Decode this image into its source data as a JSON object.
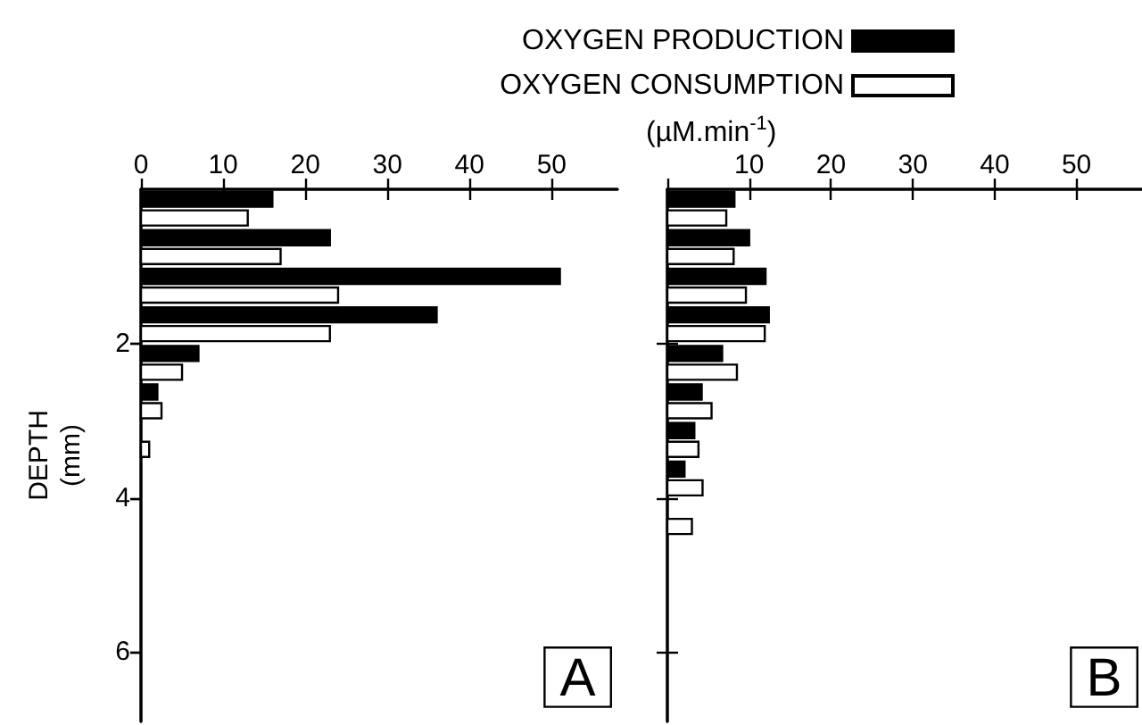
{
  "chart_data": [
    {
      "type": "bar",
      "orientation": "horizontal",
      "ylabel": "DEPTH\n(mm)",
      "legend": "top",
      "legend_title": "(µM.min$^{-1}$)",
      "annotations": [
        "A"
      ],
      "x": [
        0.25,
        0.75,
        1.25,
        1.75,
        2.25,
        2.75,
        3.25
      ],
      "series": [
        {
          "name": "OXYGEN PRODUCTION",
          "color": "#000000",
          "values": [
            16,
            23,
            51,
            36,
            7,
            2,
            null
          ]
        },
        {
          "name": "OXYGEN CONSUMPTION",
          "color": "#ffffff",
          "values": [
            13,
            17,
            24,
            23,
            5,
            2.5,
            1
          ]
        }
      ],
      "xlim": [
        0,
        58
      ],
      "xticks": [
        0,
        10,
        20,
        30,
        40,
        50
      ],
      "ylim": [
        6.9,
        0
      ],
      "yticks": [
        2,
        4,
        6
      ]
    },
    {
      "type": "bar",
      "orientation": "horizontal",
      "annotations": [
        "B"
      ],
      "tick_labels": "x",
      "x": [
        0.25,
        0.75,
        1.25,
        1.75,
        2.25,
        2.75,
        3.25,
        3.75,
        4.25
      ],
      "series": [
        {
          "color": "#000000",
          "values": [
            8.2,
            10,
            12,
            12.4,
            6.7,
            4.2,
            3.3,
            2.1,
            null
          ]
        },
        {
          "color": "#ffffff",
          "values": [
            7.2,
            8.1,
            9.6,
            11.9,
            8.5,
            5.4,
            3.8,
            4.3,
            3
          ]
        }
      ],
      "xlim": [
        0,
        58
      ],
      "xticks": [
        {
          "value": 0,
          "label": null
        },
        10,
        20,
        30,
        40,
        50
      ],
      "ylim": [
        6.9,
        0
      ],
      "yticks": [
        2,
        4,
        6
      ]
    }
  ]
}
